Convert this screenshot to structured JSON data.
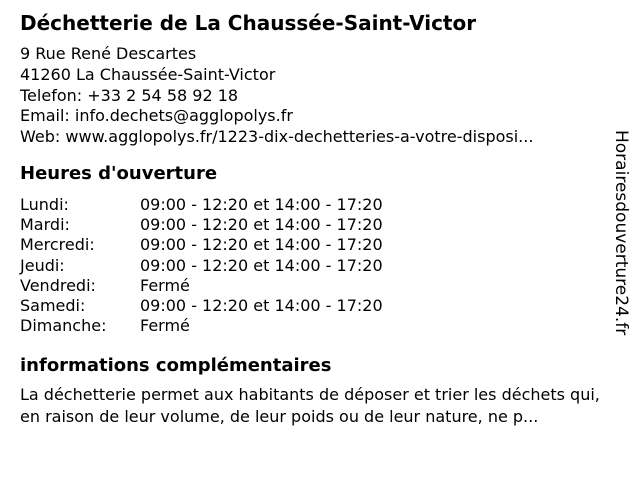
{
  "header": {
    "title": "Déchetterie de La Chaussée-Saint-Victor",
    "address_line1": "9 Rue René Descartes",
    "address_line2": "41260 La Chaussée-Saint-Victor",
    "phone_label": "Telefon:",
    "phone_value": "+33 2 54 58 92 18",
    "email_label": "Email:",
    "email_value": "info.dechets@agglopolys.fr",
    "web_label": "Web:",
    "web_value": "www.agglopolys.fr/1223-dix-dechetteries-a-votre-disposi..."
  },
  "hours": {
    "heading": "Heures d'ouverture",
    "rows": [
      {
        "day": "Lundi:",
        "time": "09:00 - 12:20 et 14:00 - 17:20"
      },
      {
        "day": "Mardi:",
        "time": "09:00 - 12:20 et 14:00 - 17:20"
      },
      {
        "day": "Mercredi:",
        "time": "09:00 - 12:20 et 14:00 - 17:20"
      },
      {
        "day": "Jeudi:",
        "time": "09:00 - 12:20 et 14:00 - 17:20"
      },
      {
        "day": "Vendredi:",
        "time": "Fermé"
      },
      {
        "day": "Samedi:",
        "time": "09:00 - 12:20 et 14:00 - 17:20"
      },
      {
        "day": "Dimanche:",
        "time": "Fermé"
      }
    ]
  },
  "info": {
    "heading": "informations complémentaires",
    "text": "La déchetterie permet aux habitants de déposer et trier les déchets qui, en raison de leur volume, de leur poids ou de leur nature, ne p..."
  },
  "watermark": {
    "text": "Horairesdouverture24.fr"
  },
  "colors": {
    "text": "#000000",
    "background": "#ffffff"
  }
}
